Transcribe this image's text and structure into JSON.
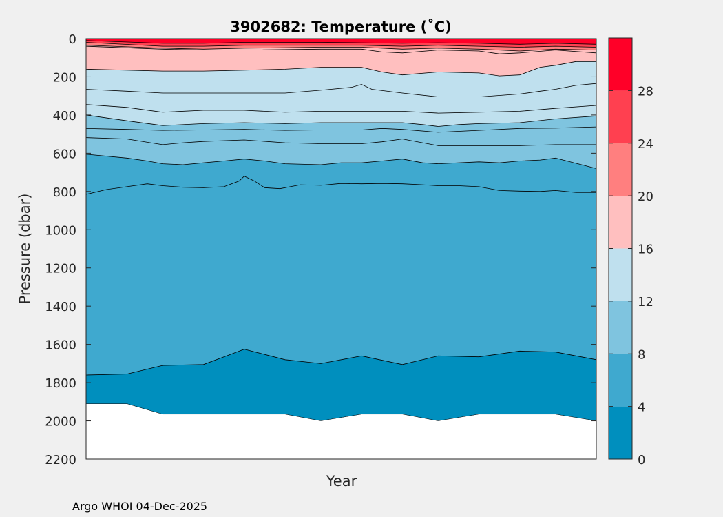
{
  "chart_data": {
    "type": "contourf",
    "title": "3902682:  Temperature (˚C)",
    "xlabel": "Year",
    "ylabel": "Pressure (dbar)",
    "ylim": [
      0,
      2200
    ],
    "y_reversed": true,
    "yticks": [
      0,
      200,
      400,
      600,
      800,
      1000,
      1200,
      1400,
      1600,
      1800,
      2000,
      2200
    ],
    "xticks": [],
    "profile_index_range": [
      0,
      100
    ],
    "colorbar": {
      "range": [
        0,
        32
      ],
      "ticks": [
        0,
        4,
        8,
        12,
        16,
        20,
        24,
        28
      ],
      "levels": [
        0,
        4,
        8,
        12,
        16,
        20,
        24,
        28,
        32
      ],
      "colors": [
        "#008fbe",
        "#3fa9cf",
        "#7fc4df",
        "#bfe0ee",
        "#ffbfbf",
        "#ff7f7f",
        "#ff4050",
        "#ff0028"
      ]
    },
    "contour_levels_drawn": [
      2,
      4,
      6,
      8,
      10,
      12,
      14,
      16,
      18,
      20,
      22,
      24,
      26
    ],
    "data_bottom_depth": {
      "x": [
        0,
        8,
        15,
        23,
        31,
        39,
        46,
        54,
        62,
        69,
        77,
        85,
        92,
        100
      ],
      "depth": [
        1910,
        1910,
        1965,
        1965,
        1965,
        1965,
        2000,
        1965,
        1965,
        2000,
        1965,
        1965,
        1965,
        2000
      ]
    },
    "isotherms": [
      {
        "level": 2,
        "x": [
          0,
          8,
          15,
          23,
          27,
          31,
          39,
          46,
          54,
          62,
          69,
          77,
          85,
          92,
          100
        ],
        "depth": [
          1760,
          1755,
          1710,
          1705,
          1665,
          1625,
          1680,
          1700,
          1660,
          1705,
          1660,
          1665,
          1635,
          1640,
          1680
        ]
      },
      {
        "level": 6,
        "x": [
          0,
          4,
          8,
          12,
          15,
          19,
          23,
          27,
          30,
          31,
          33,
          35,
          38,
          40,
          42,
          46,
          50,
          54,
          58,
          62,
          66,
          69,
          73,
          77,
          81,
          85,
          89,
          92,
          96,
          100
        ],
        "depth": [
          815,
          790,
          775,
          760,
          770,
          778,
          780,
          775,
          745,
          720,
          745,
          780,
          785,
          775,
          765,
          768,
          758,
          760,
          758,
          760,
          765,
          770,
          770,
          775,
          795,
          798,
          800,
          795,
          805,
          805
        ]
      },
      {
        "level": 8,
        "x": [
          0,
          8,
          12,
          15,
          19,
          23,
          27,
          31,
          35,
          39,
          46,
          50,
          54,
          58,
          62,
          66,
          69,
          73,
          77,
          81,
          85,
          89,
          92,
          100
        ],
        "depth": [
          605,
          625,
          640,
          655,
          660,
          650,
          640,
          630,
          640,
          655,
          660,
          650,
          650,
          640,
          630,
          650,
          655,
          650,
          645,
          650,
          640,
          635,
          625,
          680
        ]
      },
      {
        "level": 10,
        "x": [
          0,
          8,
          15,
          19,
          23,
          31,
          39,
          46,
          54,
          58,
          62,
          69,
          77,
          85,
          92,
          100
        ],
        "depth": [
          518,
          525,
          555,
          545,
          538,
          530,
          545,
          550,
          550,
          540,
          525,
          560,
          560,
          560,
          555,
          555
        ]
      },
      {
        "level": 11,
        "x": [
          0,
          8,
          15,
          23,
          31,
          39,
          46,
          54,
          58,
          62,
          69,
          77,
          85,
          92,
          100
        ],
        "depth": [
          470,
          475,
          480,
          478,
          475,
          480,
          478,
          478,
          470,
          475,
          490,
          480,
          470,
          468,
          462
        ]
      },
      {
        "level": 12,
        "x": [
          0,
          8,
          15,
          23,
          31,
          39,
          46,
          54,
          62,
          66,
          69,
          73,
          77,
          85,
          92,
          100
        ],
        "depth": [
          400,
          430,
          455,
          445,
          440,
          445,
          440,
          440,
          440,
          450,
          460,
          450,
          445,
          440,
          420,
          405
        ]
      },
      {
        "level": 13,
        "x": [
          0,
          8,
          15,
          23,
          31,
          39,
          46,
          54,
          62,
          69,
          77,
          85,
          92,
          100
        ],
        "depth": [
          345,
          360,
          385,
          375,
          375,
          385,
          380,
          380,
          380,
          390,
          385,
          380,
          365,
          350
        ]
      },
      {
        "level": 14,
        "x": [
          0,
          8,
          15,
          23,
          31,
          39,
          46,
          52,
          54,
          56,
          62,
          69,
          77,
          85,
          89,
          92,
          96,
          100
        ],
        "depth": [
          265,
          275,
          285,
          285,
          285,
          285,
          270,
          255,
          240,
          265,
          285,
          305,
          305,
          290,
          275,
          265,
          245,
          235
        ]
      },
      {
        "level": 16,
        "x": [
          0,
          8,
          15,
          23,
          31,
          39,
          46,
          54,
          58,
          62,
          69,
          77,
          81,
          85,
          89,
          92,
          96,
          100
        ],
        "depth": [
          160,
          165,
          170,
          170,
          165,
          160,
          150,
          150,
          175,
          190,
          175,
          180,
          195,
          190,
          150,
          140,
          120,
          120
        ]
      },
      {
        "level": 18,
        "x": [
          0,
          15,
          23,
          31,
          46,
          54,
          58,
          62,
          69,
          77,
          81,
          85,
          92,
          100
        ],
        "depth": [
          40,
          55,
          60,
          60,
          55,
          55,
          70,
          75,
          60,
          65,
          80,
          75,
          60,
          75
        ]
      },
      {
        "level": 20,
        "x": [
          0,
          15,
          23,
          31,
          46,
          54,
          62,
          69,
          77,
          85,
          92,
          100
        ],
        "depth": [
          35,
          50,
          55,
          50,
          45,
          45,
          55,
          50,
          55,
          65,
          55,
          60
        ]
      },
      {
        "level": 24,
        "x": [
          0,
          15,
          23,
          31,
          46,
          54,
          62,
          69,
          77,
          85,
          92,
          100
        ],
        "depth": [
          20,
          40,
          40,
          35,
          35,
          35,
          40,
          35,
          40,
          45,
          40,
          45
        ]
      },
      {
        "level": 26,
        "x": [
          0,
          15,
          23,
          31,
          46,
          54,
          62,
          69,
          77,
          85,
          92,
          100
        ],
        "depth": [
          10,
          25,
          25,
          20,
          20,
          22,
          25,
          22,
          25,
          30,
          25,
          30
        ]
      }
    ]
  },
  "footer": "Argo WHOI 04-Dec-2025"
}
